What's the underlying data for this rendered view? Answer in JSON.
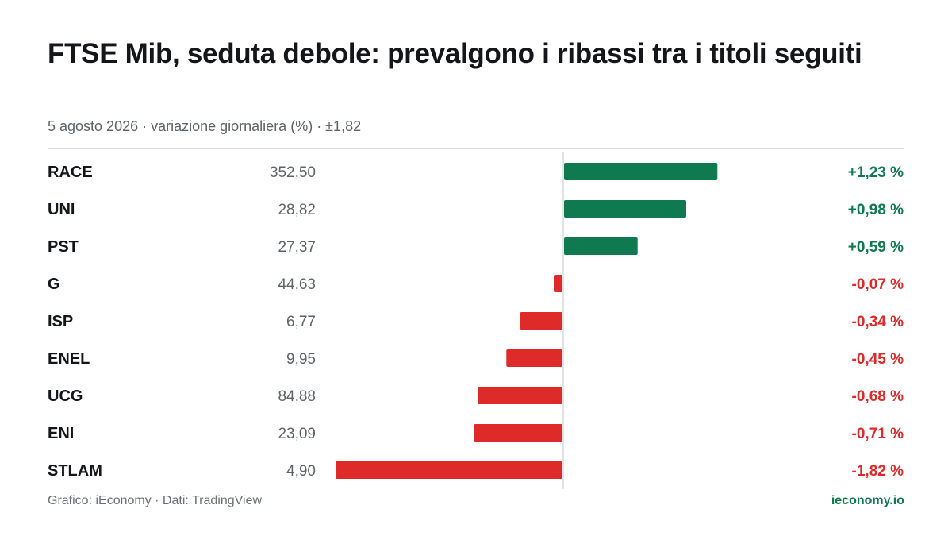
{
  "header": {
    "title": "FTSE Mib, seduta debole: prevalgono i ribassi tra i titoli seguiti",
    "subtitle": "5 agosto 2026 · variazione giornaliera (%) · ±1,82"
  },
  "footer": {
    "source": "Grafico: iEconomy · Dati: TradingView",
    "brand": "ieconomy.io"
  },
  "colors": {
    "positive": "#0f7a4f",
    "negative": "#df2a2a",
    "axis": "#dadcdf",
    "ticker_text": "#141619",
    "price_text": "#5f6368"
  },
  "chart_data": {
    "type": "bar",
    "orientation": "horizontal",
    "symmetric_range": [
      -1.82,
      1.82
    ],
    "rows": [
      {
        "ticker": "RACE",
        "price": "352,50",
        "change": 1.23,
        "change_label": "+1,23 %"
      },
      {
        "ticker": "UNI",
        "price": "28,82",
        "change": 0.98,
        "change_label": "+0,98 %"
      },
      {
        "ticker": "PST",
        "price": "27,37",
        "change": 0.59,
        "change_label": "+0,59 %"
      },
      {
        "ticker": "G",
        "price": "44,63",
        "change": -0.07,
        "change_label": "-0,07 %"
      },
      {
        "ticker": "ISP",
        "price": "6,77",
        "change": -0.34,
        "change_label": "-0,34 %"
      },
      {
        "ticker": "ENEL",
        "price": "9,95",
        "change": -0.45,
        "change_label": "-0,45 %"
      },
      {
        "ticker": "UCG",
        "price": "84,88",
        "change": -0.68,
        "change_label": "-0,68 %"
      },
      {
        "ticker": "ENI",
        "price": "23,09",
        "change": -0.71,
        "change_label": "-0,71 %"
      },
      {
        "ticker": "STLAM",
        "price": "4,90",
        "change": -1.82,
        "change_label": "-1,82 %"
      }
    ]
  }
}
